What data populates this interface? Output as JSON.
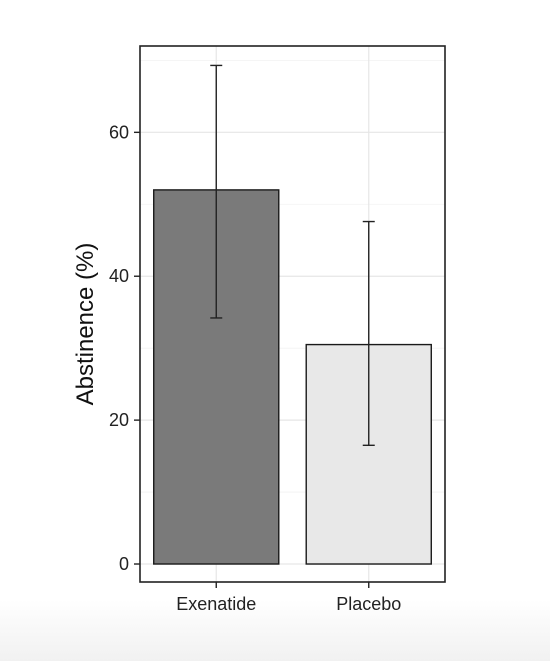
{
  "chart_data": {
    "type": "bar",
    "title": "",
    "xlabel": "",
    "ylabel": "Abstinence (%)",
    "categories": [
      "Exenatide",
      "Placebo"
    ],
    "values": [
      52,
      30.5
    ],
    "error_low": [
      34.2,
      16.5
    ],
    "error_high": [
      69.3,
      47.6
    ],
    "bar_colors": [
      "#7a7a7a",
      "#e8e8e8"
    ],
    "ylim": [
      -2.5,
      72
    ],
    "yticks": [
      0,
      20,
      40,
      60
    ],
    "ytick_labels": [
      "0",
      "20",
      "40",
      "60"
    ],
    "grid": true,
    "legend": "none"
  }
}
